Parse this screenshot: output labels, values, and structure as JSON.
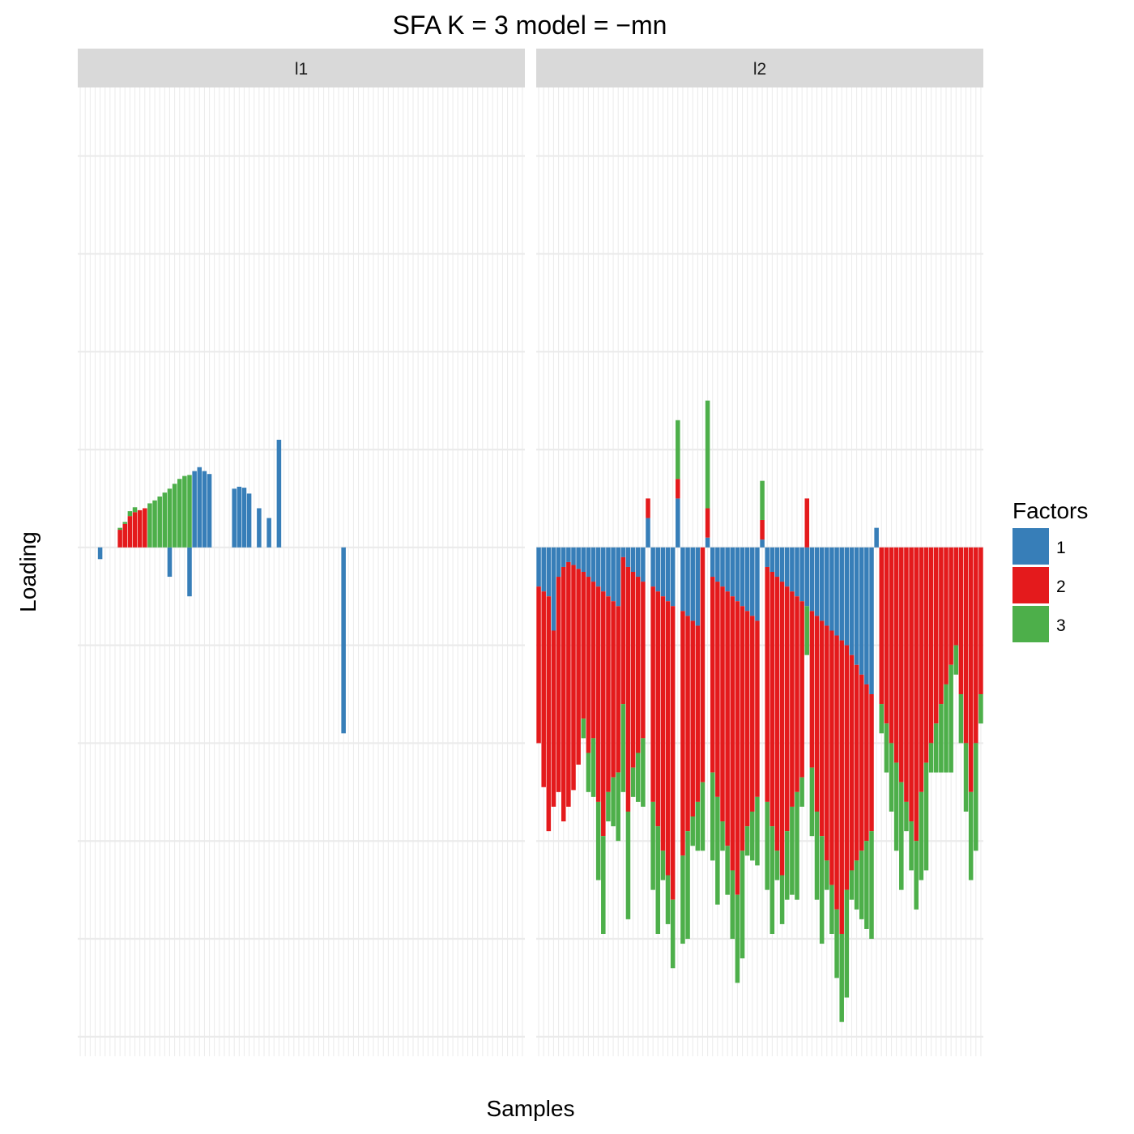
{
  "chart_data": {
    "type": "bar",
    "stacked": true,
    "title": "SFA K = 3 model =  −mn",
    "xlabel": "Samples",
    "ylabel": "Loading",
    "ylim": [
      -5.2,
      4.7
    ],
    "grid": true,
    "x_tick_labels": false,
    "y_tick_labels": false,
    "n_samples_per_panel": 90,
    "legend": {
      "title": "Factors",
      "position": "right",
      "entries": [
        {
          "label": "1",
          "color": "#377EB8"
        },
        {
          "label": "2",
          "color": "#E41A1C"
        },
        {
          "label": "3",
          "color": "#4DAF4A"
        }
      ]
    },
    "panels": [
      {
        "label": "l1",
        "series": [
          {
            "name": "1",
            "values": [
              0,
              0,
              0,
              0,
              -0.12,
              0,
              0,
              0,
              0,
              0,
              0,
              0,
              0,
              0,
              0,
              0,
              0,
              0,
              -0.3,
              0,
              0,
              0,
              -0.5,
              0.78,
              0.82,
              0.78,
              0.75,
              0,
              0,
              0,
              0,
              0.6,
              0.62,
              0.61,
              0.55,
              0,
              0.4,
              0,
              0.3,
              0,
              1.1,
              0,
              0,
              0,
              0,
              0,
              0,
              0,
              0,
              0,
              0,
              0,
              0,
              -1.9,
              0,
              0,
              0,
              0,
              0,
              0,
              0,
              0,
              0,
              0,
              0,
              0,
              0,
              0,
              0,
              0,
              0,
              0,
              0,
              0,
              0,
              0,
              0,
              0,
              0,
              0,
              0,
              0,
              0,
              0,
              0,
              0,
              0,
              0,
              0,
              0
            ]
          },
          {
            "name": "2",
            "values": [
              0,
              0,
              0,
              0,
              0,
              0,
              0,
              0,
              0.18,
              0.24,
              0.32,
              0.36,
              0.38,
              0.4,
              0,
              0,
              0,
              0,
              0,
              0,
              0,
              0,
              0,
              0,
              0,
              0,
              0,
              0,
              0,
              0,
              0,
              0,
              0,
              0,
              0,
              0,
              0,
              0,
              0,
              0,
              0,
              0,
              0,
              0,
              0,
              0,
              0,
              0,
              0,
              0,
              0,
              0,
              0,
              0,
              0,
              0,
              0,
              0,
              0,
              0,
              0,
              0,
              0,
              0,
              0,
              0,
              0,
              0,
              0,
              0,
              0,
              0,
              0,
              0,
              0,
              0,
              0,
              0,
              0,
              0,
              0,
              0,
              0,
              0,
              0,
              0,
              0,
              0,
              0,
              0
            ]
          },
          {
            "name": "3",
            "values": [
              0,
              0,
              0,
              0,
              0,
              0,
              0,
              0,
              0.02,
              0.02,
              0.05,
              0.05,
              0,
              0,
              0.45,
              0.48,
              0.52,
              0.56,
              0.6,
              0.65,
              0.7,
              0.73,
              0.74,
              0,
              0,
              0,
              0,
              0,
              0,
              0,
              0,
              0,
              0,
              0,
              0,
              0,
              0,
              0,
              0,
              0,
              0,
              0,
              0,
              0,
              0,
              0,
              0,
              0,
              0,
              0,
              0,
              0,
              0,
              0,
              0,
              0,
              0,
              0,
              0,
              0,
              0,
              0,
              0,
              0,
              0,
              0,
              0,
              0,
              0,
              0,
              0,
              0,
              0,
              0,
              0,
              0,
              0,
              0,
              0,
              0,
              0,
              0,
              0,
              0,
              0,
              0,
              0,
              0,
              0,
              0
            ]
          }
        ]
      },
      {
        "label": "l2",
        "series": [
          {
            "name": "1",
            "values": [
              -0.4,
              -0.45,
              -0.5,
              -0.85,
              -0.3,
              -0.2,
              -0.15,
              -0.18,
              -0.22,
              -0.25,
              -0.3,
              -0.35,
              -0.4,
              -0.45,
              -0.5,
              -0.55,
              -0.6,
              -0.1,
              -0.2,
              -0.25,
              -0.3,
              -0.35,
              0.3,
              -0.4,
              -0.45,
              -0.5,
              -0.55,
              -0.6,
              0.5,
              -0.65,
              -0.7,
              -0.75,
              -0.8,
              0,
              0.1,
              -0.3,
              -0.35,
              -0.4,
              -0.45,
              -0.5,
              -0.55,
              -0.6,
              -0.65,
              -0.7,
              -0.75,
              0.08,
              -0.2,
              -0.25,
              -0.3,
              -0.35,
              -0.4,
              -0.45,
              -0.5,
              -0.55,
              -0.6,
              -0.65,
              -0.7,
              -0.75,
              -0.8,
              -0.85,
              -0.9,
              -0.95,
              -1.0,
              -1.1,
              -1.2,
              -1.3,
              -1.4,
              -1.5,
              0.2,
              0,
              0,
              0,
              0,
              0,
              0,
              0,
              0,
              0,
              0,
              0,
              0,
              0,
              0,
              0,
              0,
              0,
              0,
              0,
              0,
              0
            ]
          },
          {
            "name": "2",
            "values": [
              -1.6,
              -2.0,
              -2.4,
              -1.8,
              -2.2,
              -2.6,
              -2.5,
              -2.3,
              -2.0,
              -1.5,
              -1.8,
              -1.6,
              -2.2,
              -2.5,
              -2.0,
              -1.8,
              -1.7,
              -1.5,
              -2.5,
              -2.0,
              -1.8,
              -1.6,
              0.2,
              -2.2,
              -2.4,
              -2.6,
              -2.8,
              -3.0,
              0.2,
              -2.5,
              -2.2,
              -2.0,
              -1.8,
              -2.4,
              0.3,
              -2.0,
              -2.2,
              -2.4,
              -2.6,
              -2.8,
              -3.0,
              -2.5,
              -2.2,
              -2.0,
              -1.8,
              0.2,
              -2.4,
              -2.6,
              -2.8,
              -3.0,
              -2.5,
              -2.2,
              -2.0,
              -1.8,
              0.5,
              -1.6,
              -2.0,
              -2.2,
              -2.4,
              -2.6,
              -2.8,
              -3.0,
              -2.5,
              -2.2,
              -2.0,
              -1.8,
              -1.6,
              -1.4,
              0,
              -1.6,
              -1.8,
              -2.0,
              -2.2,
              -2.4,
              -2.6,
              -2.8,
              -3.0,
              -2.5,
              -2.2,
              -2.0,
              -1.8,
              -1.6,
              -1.4,
              -1.2,
              -1.0,
              -1.5,
              -2.0,
              -2.5,
              -2.0,
              -1.5
            ]
          },
          {
            "name": "3",
            "values": [
              0,
              0,
              0,
              0,
              0,
              0,
              0,
              0,
              0,
              -0.2,
              -0.4,
              -0.6,
              -0.8,
              -1.0,
              -0.3,
              -0.5,
              -0.7,
              -0.9,
              -1.1,
              -0.3,
              -0.5,
              -0.7,
              0,
              -0.9,
              -1.1,
              -0.3,
              -0.5,
              -0.7,
              0.6,
              -0.9,
              -1.1,
              -0.3,
              -0.5,
              -0.7,
              1.1,
              -0.9,
              -1.1,
              -0.3,
              -0.5,
              -0.7,
              -0.9,
              -1.1,
              -0.3,
              -0.5,
              -0.7,
              0.4,
              -0.9,
              -1.1,
              -0.3,
              -0.5,
              -0.7,
              -0.9,
              -1.1,
              -0.3,
              -0.5,
              -0.7,
              -0.9,
              -1.1,
              -0.3,
              -0.5,
              -0.7,
              -0.9,
              -1.1,
              -0.3,
              -0.5,
              -0.7,
              -0.9,
              -1.1,
              0,
              -0.3,
              -0.5,
              -0.7,
              -0.9,
              -1.1,
              -0.3,
              -0.5,
              -0.7,
              -0.9,
              -1.1,
              -0.3,
              -0.5,
              -0.7,
              -0.9,
              -1.1,
              -0.3,
              -0.5,
              -0.7,
              -0.9,
              -1.1,
              -0.3
            ]
          }
        ]
      }
    ]
  }
}
